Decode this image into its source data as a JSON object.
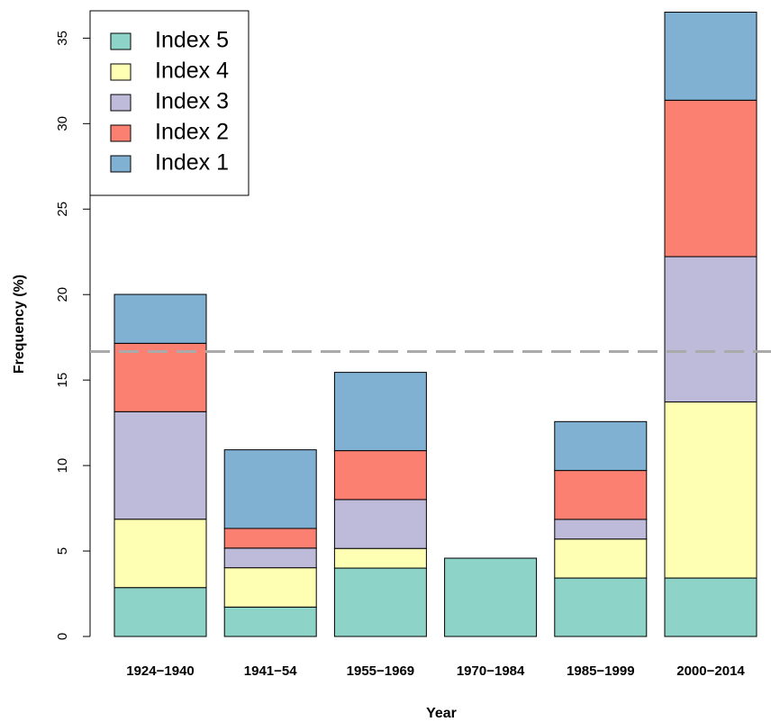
{
  "chart_data": {
    "type": "bar",
    "stacked": true,
    "x_label": "Year",
    "y_label": "Frequency (%)",
    "categories": [
      "1924−1940",
      "1941−54",
      "1955−1969",
      "1970−1984",
      "1985−1999",
      "2000−2014"
    ],
    "series": [
      {
        "name": "Index 5",
        "color": "#8dd3c7",
        "values": [
          2.86,
          1.72,
          4.0,
          4.58,
          3.42,
          3.42
        ]
      },
      {
        "name": "Index 4",
        "color": "#ffffb3",
        "values": [
          4.0,
          2.3,
          1.15,
          0,
          2.28,
          10.3
        ]
      },
      {
        "name": "Index 3",
        "color": "#bebada",
        "values": [
          6.29,
          1.15,
          2.86,
          0,
          1.15,
          8.5
        ]
      },
      {
        "name": "Index 2",
        "color": "#fb8072",
        "values": [
          4.0,
          1.15,
          2.86,
          0,
          2.86,
          9.15
        ]
      },
      {
        "name": "Index 1",
        "color": "#80b1d3",
        "values": [
          2.86,
          4.6,
          4.58,
          0,
          2.86,
          5.15
        ]
      }
    ],
    "ylim": [
      0,
      36.6
    ],
    "yticks": [
      0,
      5,
      10,
      15,
      20,
      25,
      30,
      35
    ],
    "reference_line": {
      "value": 16.67,
      "color": "#aaaaaa"
    },
    "legend": "top-left"
  }
}
